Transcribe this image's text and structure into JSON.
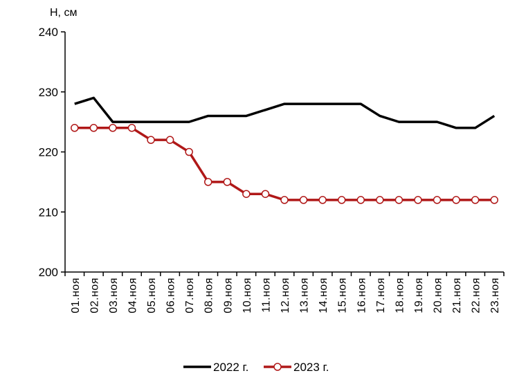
{
  "chart_data": {
    "type": "line",
    "ylabel": "Н, см",
    "ylim": [
      200,
      240
    ],
    "yticks": [
      200,
      210,
      220,
      230,
      240
    ],
    "categories": [
      "01.ноя",
      "02.ноя",
      "03.ноя",
      "04.ноя",
      "05.ноя",
      "06.ноя",
      "07.ноя",
      "08.ноя",
      "09.ноя",
      "10.ноя",
      "11.ноя",
      "12.ноя",
      "13.ноя",
      "14.ноя",
      "15.ноя",
      "16.ноя",
      "17.ноя",
      "18.ноя",
      "19.ноя",
      "20.ноя",
      "21.ноя",
      "22.ноя",
      "23.ноя"
    ],
    "series": [
      {
        "name": "2022 г.",
        "color": "#000000",
        "values": [
          228,
          229,
          225,
          225,
          225,
          225,
          225,
          226,
          226,
          226,
          227,
          228,
          228,
          228,
          228,
          228,
          226,
          225,
          225,
          225,
          224,
          224,
          226
        ]
      },
      {
        "name": "2023 г.",
        "color": "#b01818",
        "values": [
          224,
          224,
          224,
          224,
          222,
          222,
          220,
          215,
          215,
          213,
          213,
          212,
          212,
          212,
          212,
          212,
          212,
          212,
          212,
          212,
          212,
          212,
          212
        ]
      }
    ],
    "legend_position": "bottom",
    "grid": false
  }
}
